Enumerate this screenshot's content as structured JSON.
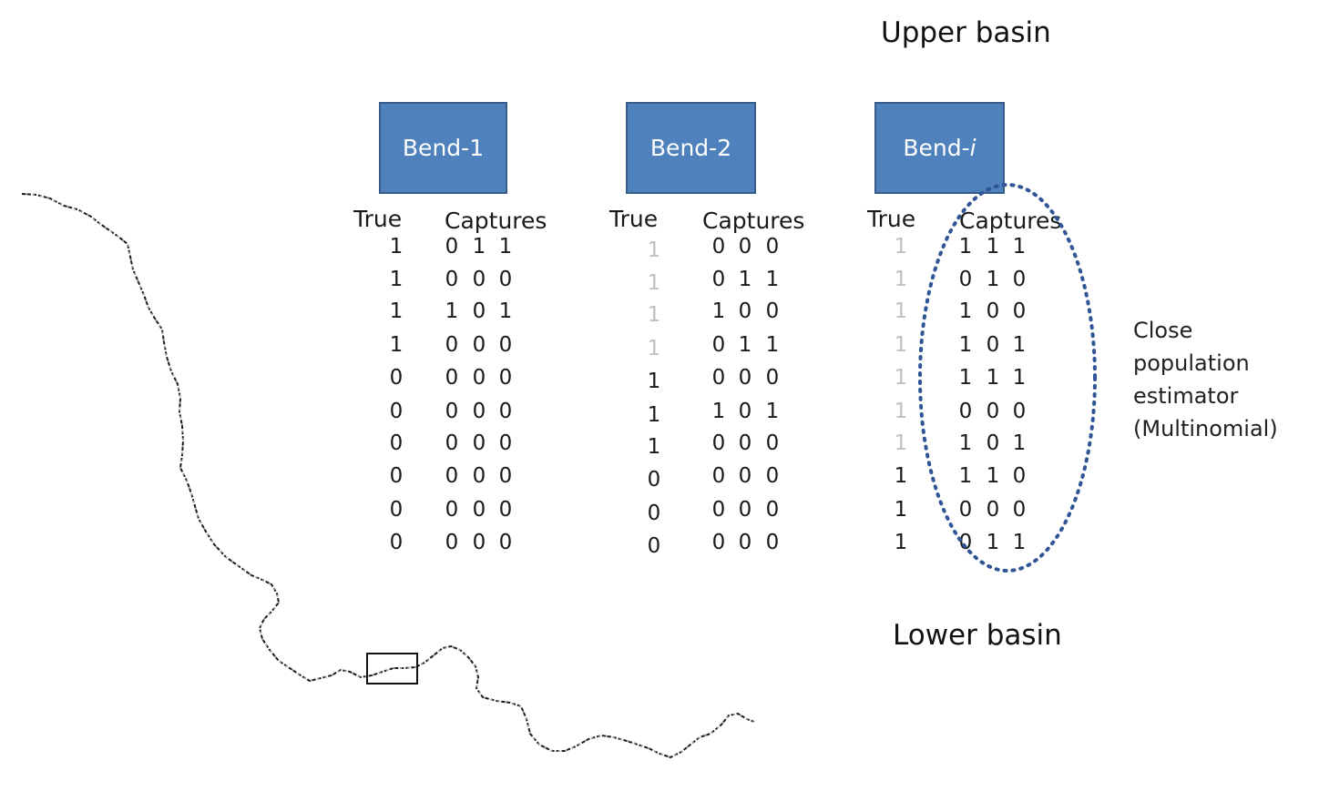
{
  "labels": {
    "upper_basin": "Upper basin",
    "lower_basin": "Lower basin"
  },
  "note": [
    "Close",
    "population",
    "estimator",
    "(Multinomial)"
  ],
  "bends": [
    {
      "name": "Bend-",
      "name_italic_suffix": "",
      "name_plain_suffix": "1",
      "true_header": "True",
      "captures_header": "Captures",
      "rows": [
        {
          "true": "1",
          "faded": false,
          "caps": [
            "0",
            "1",
            "1"
          ]
        },
        {
          "true": "1",
          "faded": false,
          "caps": [
            "0",
            "0",
            "0"
          ]
        },
        {
          "true": "1",
          "faded": false,
          "caps": [
            "1",
            "0",
            "1"
          ]
        },
        {
          "true": "1",
          "faded": false,
          "caps": [
            "0",
            "0",
            "0"
          ]
        },
        {
          "true": "0",
          "faded": false,
          "caps": [
            "0",
            "0",
            "0"
          ]
        },
        {
          "true": "0",
          "faded": false,
          "caps": [
            "0",
            "0",
            "0"
          ]
        },
        {
          "true": "0",
          "faded": false,
          "caps": [
            "0",
            "0",
            "0"
          ]
        },
        {
          "true": "0",
          "faded": false,
          "caps": [
            "0",
            "0",
            "0"
          ]
        },
        {
          "true": "0",
          "faded": false,
          "caps": [
            "0",
            "0",
            "0"
          ]
        },
        {
          "true": "0",
          "faded": false,
          "caps": [
            "0",
            "0",
            "0"
          ]
        }
      ]
    },
    {
      "name": "Bend-",
      "name_italic_suffix": "",
      "name_plain_suffix": "2",
      "true_header": "True",
      "captures_header": "Captures",
      "rows": [
        {
          "true": "1",
          "faded": true,
          "caps": [
            "0",
            "0",
            "0"
          ]
        },
        {
          "true": "1",
          "faded": true,
          "caps": [
            "0",
            "1",
            "1"
          ]
        },
        {
          "true": "1",
          "faded": true,
          "caps": [
            "1",
            "0",
            "0"
          ]
        },
        {
          "true": "1",
          "faded": true,
          "caps": [
            "0",
            "1",
            "1"
          ]
        },
        {
          "true": "1",
          "faded": false,
          "caps": [
            "0",
            "0",
            "0"
          ]
        },
        {
          "true": "1",
          "faded": false,
          "caps": [
            "1",
            "0",
            "1"
          ]
        },
        {
          "true": "1",
          "faded": false,
          "caps": [
            "0",
            "0",
            "0"
          ]
        },
        {
          "true": "0",
          "faded": false,
          "caps": [
            "0",
            "0",
            "0"
          ]
        },
        {
          "true": "0",
          "faded": false,
          "caps": [
            "0",
            "0",
            "0"
          ]
        },
        {
          "true": "0",
          "faded": false,
          "caps": [
            "0",
            "0",
            "0"
          ]
        }
      ]
    },
    {
      "name": "Bend-",
      "name_italic_suffix": "i",
      "name_plain_suffix": "",
      "true_header": "True",
      "captures_header": "Captures",
      "rows": [
        {
          "true": "1",
          "faded": true,
          "caps": [
            "1",
            "1",
            "1"
          ]
        },
        {
          "true": "1",
          "faded": true,
          "caps": [
            "0",
            "1",
            "0"
          ]
        },
        {
          "true": "1",
          "faded": true,
          "caps": [
            "1",
            "0",
            "0"
          ]
        },
        {
          "true": "1",
          "faded": true,
          "caps": [
            "1",
            "0",
            "1"
          ]
        },
        {
          "true": "1",
          "faded": true,
          "caps": [
            "1",
            "1",
            "1"
          ]
        },
        {
          "true": "1",
          "faded": true,
          "caps": [
            "0",
            "0",
            "0"
          ]
        },
        {
          "true": "1",
          "faded": true,
          "caps": [
            "1",
            "0",
            "1"
          ]
        },
        {
          "true": "1",
          "faded": false,
          "caps": [
            "1",
            "1",
            "0"
          ]
        },
        {
          "true": "1",
          "faded": false,
          "caps": [
            "0",
            "0",
            "0"
          ]
        },
        {
          "true": "1",
          "faded": false,
          "caps": [
            "0",
            "1",
            "1"
          ]
        }
      ]
    }
  ]
}
